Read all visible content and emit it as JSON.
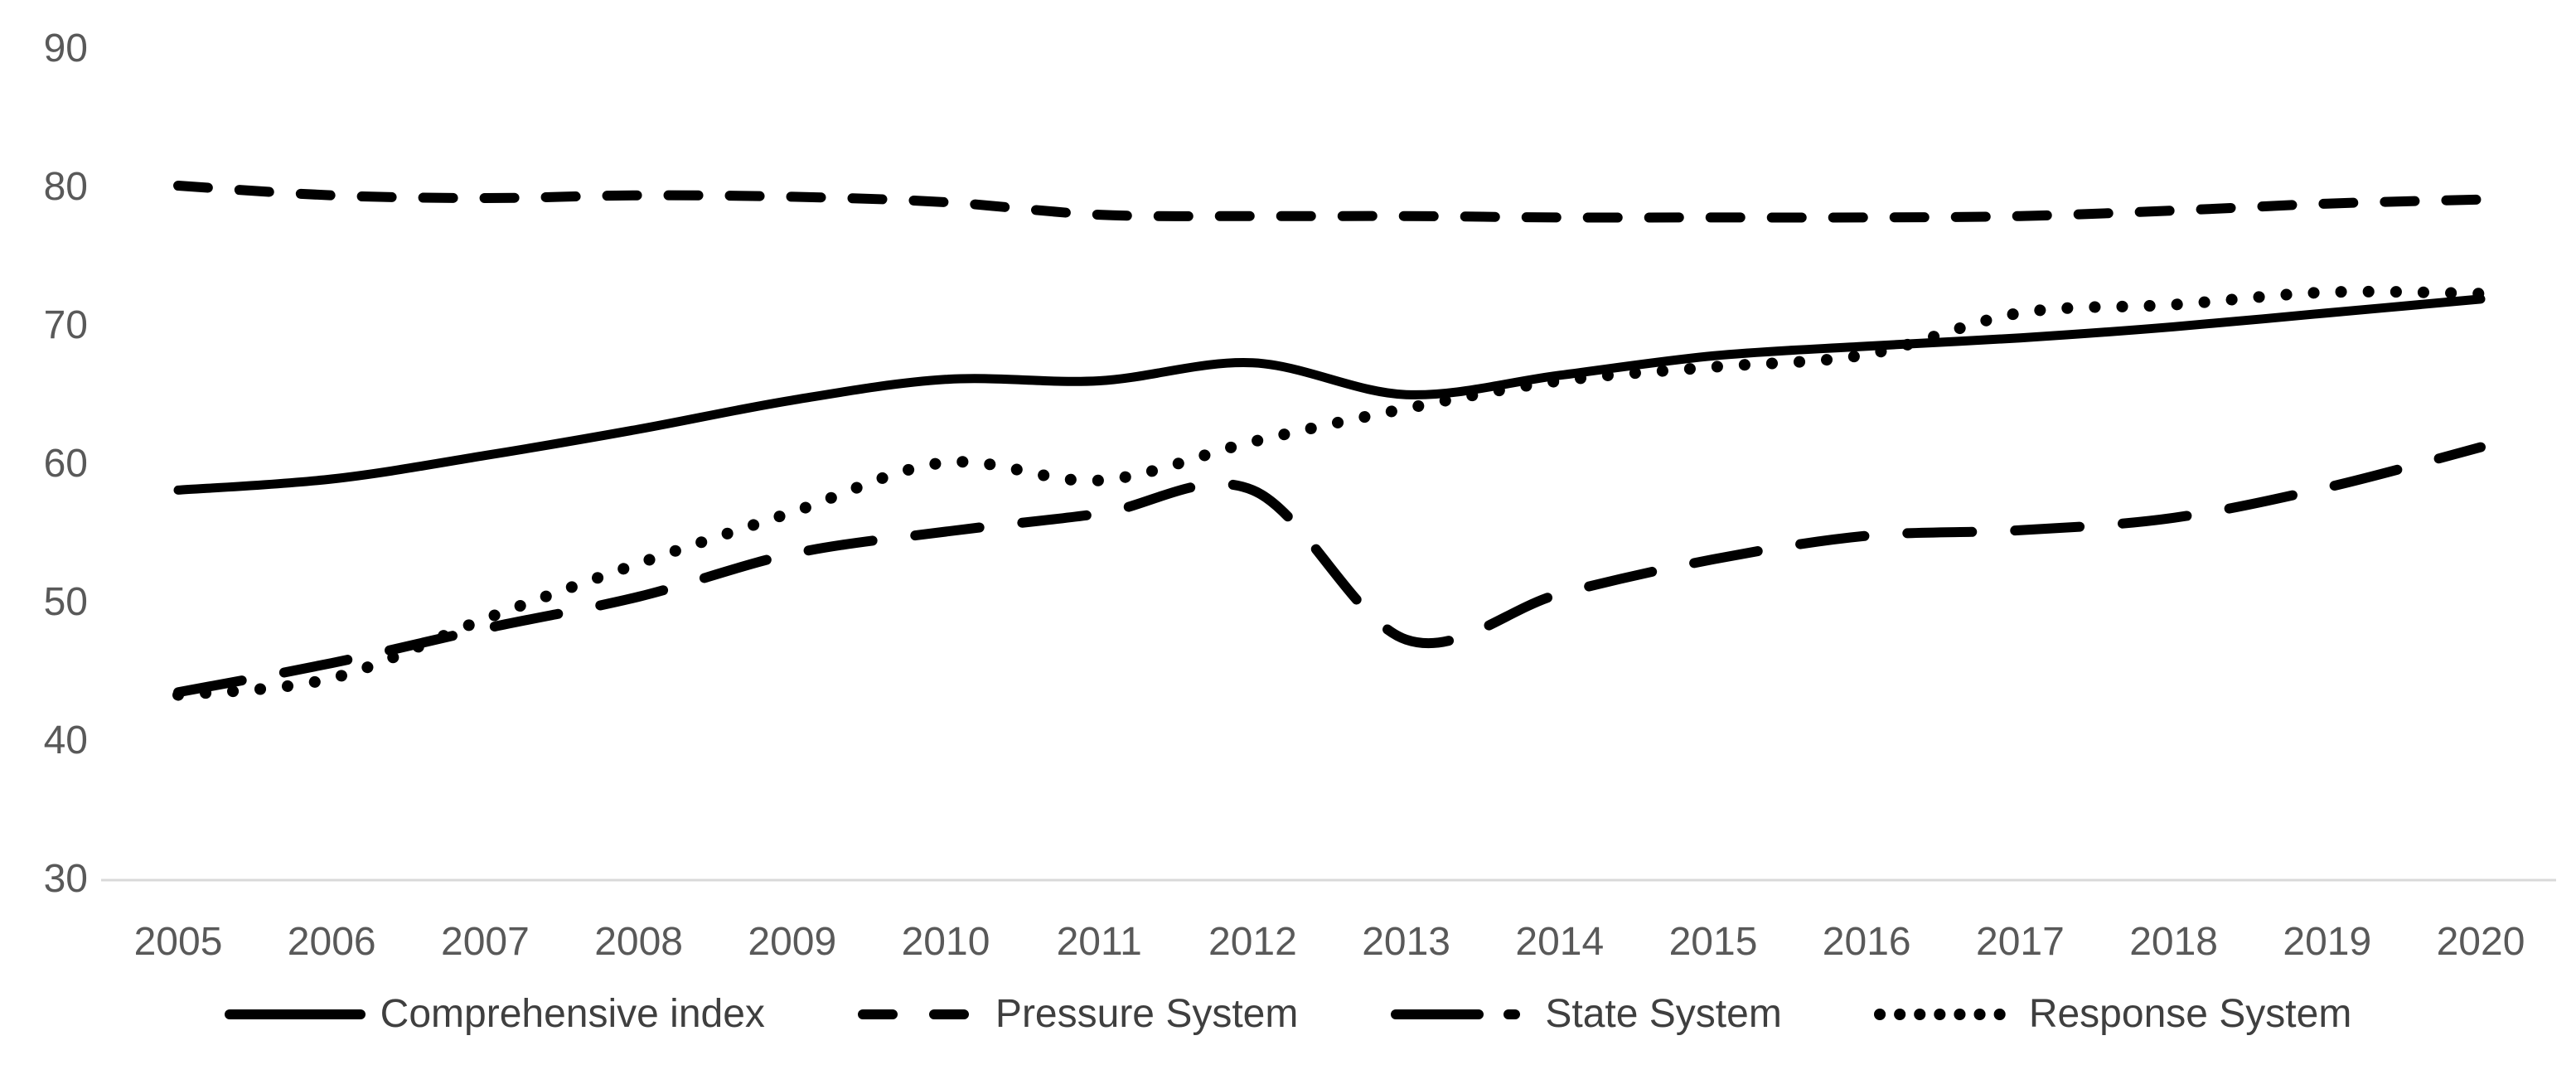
{
  "chart_data": {
    "type": "line",
    "title": "",
    "xlabel": "",
    "ylabel": "",
    "x": [
      2005,
      2006,
      2007,
      2008,
      2009,
      2010,
      2011,
      2012,
      2013,
      2014,
      2015,
      2016,
      2017,
      2018,
      2019,
      2020
    ],
    "yticks": [
      30,
      40,
      50,
      60,
      70,
      80,
      90
    ],
    "ylim": [
      30,
      90
    ],
    "grid": false,
    "legend_position": "bottom",
    "series_color": "#000000",
    "axis_label_color": "#595959",
    "legend_label_color": "#3f3f3f",
    "axis_line_color": "#d9d9d9",
    "series": [
      {
        "name": "Comprehensive index",
        "line_style": "solid",
        "values": [
          58.0,
          58.8,
          60.5,
          62.4,
          64.5,
          66.0,
          65.9,
          67.2,
          64.9,
          66.3,
          67.7,
          68.4,
          69.0,
          69.8,
          70.8,
          71.8
        ]
      },
      {
        "name": "Pressure System",
        "line_style": "dash",
        "values": [
          80.0,
          79.3,
          79.1,
          79.3,
          79.2,
          78.8,
          77.9,
          77.8,
          77.8,
          77.7,
          77.7,
          77.7,
          77.8,
          78.2,
          78.7,
          79.0
        ]
      },
      {
        "name": "State System",
        "line_style": "long-dash",
        "values": [
          43.4,
          45.5,
          48.0,
          50.3,
          53.4,
          55.0,
          56.3,
          58.0,
          47.2,
          50.5,
          53.0,
          54.7,
          55.1,
          56.0,
          58.2,
          61.1
        ]
      },
      {
        "name": "Response System",
        "line_style": "dot",
        "values": [
          43.2,
          44.4,
          48.7,
          52.7,
          56.4,
          60.0,
          58.7,
          61.5,
          63.9,
          65.9,
          66.9,
          67.8,
          70.8,
          71.4,
          72.3,
          72.2
        ]
      }
    ]
  }
}
